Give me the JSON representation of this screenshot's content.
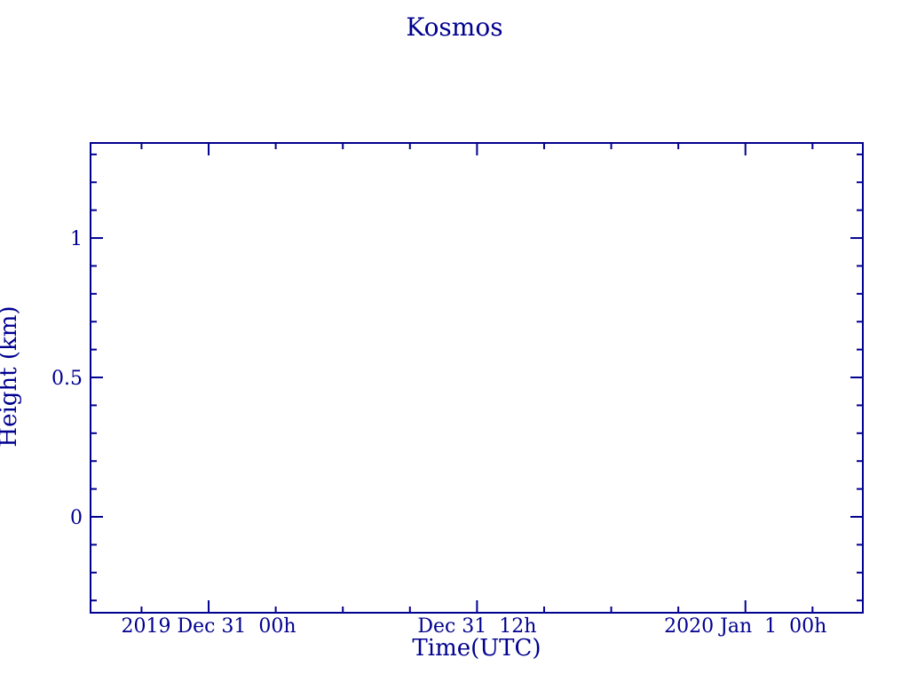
{
  "colors": {
    "ink": "#000090",
    "background": "#ffffff"
  },
  "chart_data": {
    "type": "scatter",
    "title": "Kosmos",
    "xlabel": "Time(UTC)",
    "ylabel": "Height (km)",
    "grid": false,
    "legend": null,
    "plot_area_empty": true,
    "series": [],
    "x_axis": {
      "units": "hours relative to 2019-12-31 00:00 UTC",
      "lim": [
        -5.28,
        29.25
      ],
      "major_ticks": [
        {
          "value": 0,
          "label": "2019 Dec 31  00h"
        },
        {
          "value": 12,
          "label": "Dec 31  12h"
        },
        {
          "value": 24,
          "label": "2020 Jan  1  00h"
        }
      ],
      "minor_tick_step": 3,
      "ticks_inward": true,
      "mirrored_top": true
    },
    "y_axis": {
      "units": "km",
      "lim": [
        -0.344,
        1.341
      ],
      "major_ticks": [
        {
          "value": 0,
          "label": "0"
        },
        {
          "value": 0.5,
          "label": "0.5"
        },
        {
          "value": 1,
          "label": "1"
        }
      ],
      "minor_tick_step": 0.1,
      "ticks_inward": true,
      "mirrored_right": true
    }
  }
}
